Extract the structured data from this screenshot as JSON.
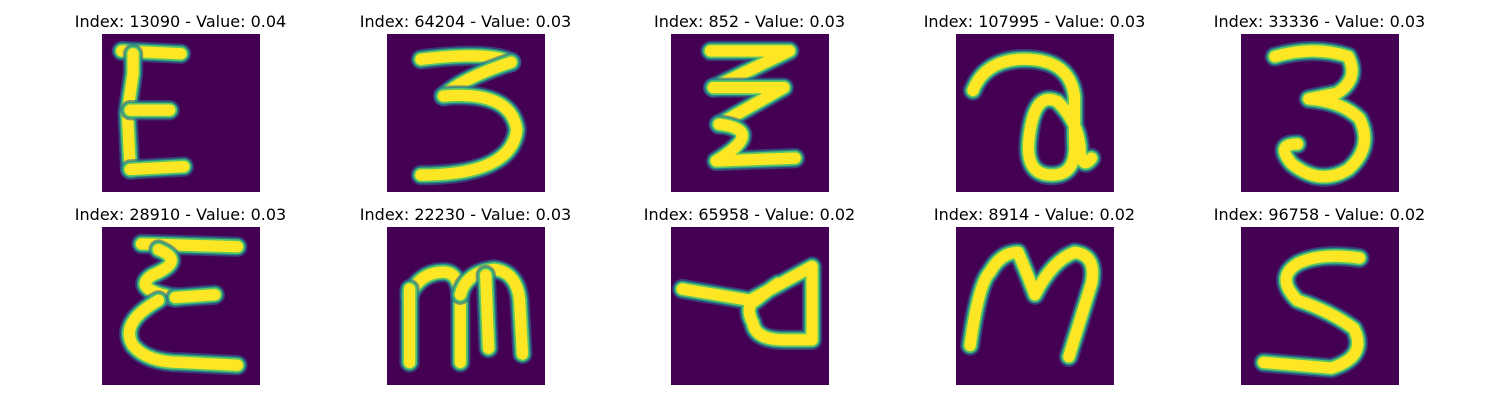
{
  "figure": {
    "background": "#ffffff",
    "image_background": "#440154",
    "colormap": "viridis"
  },
  "chart_data": {
    "type": "image-grid",
    "rows": 2,
    "cols": 5,
    "panels": [
      {
        "title": "Index: 13090 - Value: 0.04",
        "index": 13090,
        "value": 0.04,
        "shape": "E"
      },
      {
        "title": "Index: 64204 - Value: 0.03",
        "index": 64204,
        "value": 0.03,
        "shape": "3-flat"
      },
      {
        "title": "Index: 852 - Value: 0.03",
        "index": 852,
        "value": 0.03,
        "shape": "z-stack"
      },
      {
        "title": "Index: 107995 - Value: 0.03",
        "index": 107995,
        "value": 0.03,
        "shape": "a-loop"
      },
      {
        "title": "Index: 33336 - Value: 0.03",
        "index": 33336,
        "value": 0.03,
        "shape": "3-round"
      },
      {
        "title": "Index: 28910 - Value: 0.03",
        "index": 28910,
        "value": 0.03,
        "shape": "E-curly"
      },
      {
        "title": "Index: 22230 - Value: 0.03",
        "index": 22230,
        "value": 0.03,
        "shape": "m"
      },
      {
        "title": "Index: 65958 - Value: 0.02",
        "index": 65958,
        "value": 0.02,
        "shape": "triangle-stroke"
      },
      {
        "title": "Index: 8914 - Value: 0.02",
        "index": 8914,
        "value": 0.02,
        "shape": "M"
      },
      {
        "title": "Index: 96758 - Value: 0.02",
        "index": 96758,
        "value": 0.02,
        "shape": "S"
      }
    ]
  }
}
